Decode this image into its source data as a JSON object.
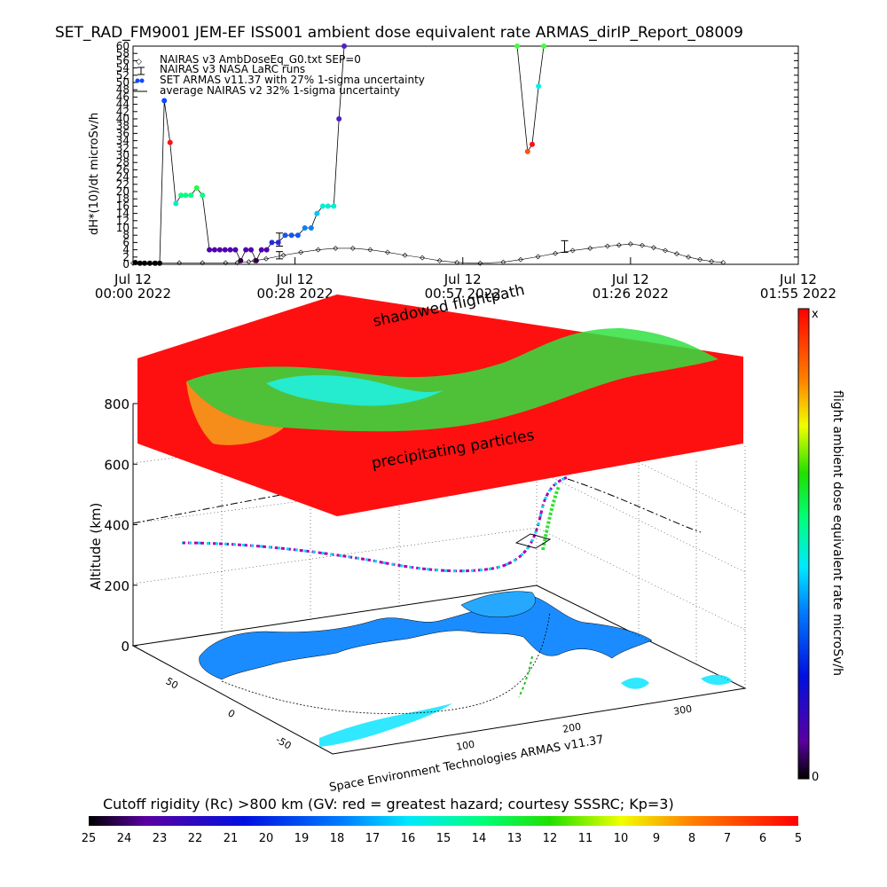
{
  "chart_data": [
    {
      "type": "line",
      "title": "SET_RAD_FM9001   JEM-EF ISS001 ambient dose equivalent rate ARMAS_dirIP_Report_08009",
      "ylabel": "dH*(10)/dt microSv/h",
      "ylim": [
        0,
        60
      ],
      "xlim_minutes": [
        0,
        115
      ],
      "yticks": [
        0,
        2,
        4,
        6,
        8,
        10,
        12,
        14,
        16,
        18,
        20,
        22,
        24,
        26,
        28,
        30,
        32,
        34,
        36,
        38,
        40,
        42,
        44,
        46,
        48,
        50,
        52,
        54,
        56,
        58,
        60
      ],
      "xticks": [
        {
          "minute": 0,
          "line1": "Jul 12",
          "line2": "00:00 2022"
        },
        {
          "minute": 28,
          "line1": "Jul 12",
          "line2": "00:28 2022"
        },
        {
          "minute": 57,
          "line1": "Jul 12",
          "line2": "00:57 2022"
        },
        {
          "minute": 86,
          "line1": "Jul 12",
          "line2": "01:26 2022"
        },
        {
          "minute": 115,
          "line1": "Jul 12",
          "line2": "01:55 2022"
        }
      ],
      "legend": [
        {
          "label": "NAIRAS v3 AmbDoseEq_G0.txt SEP=0",
          "marker": "x"
        },
        {
          "label": "NAIRAS v3 NASA LaRC runs",
          "marker": "errorbar"
        },
        {
          "label": "SET ARMAS v11.37 with 27% 1-sigma uncertainty",
          "marker": "dot"
        },
        {
          "label": "average NAIRAS v2 32% 1-sigma uncertainty",
          "marker": "line"
        }
      ],
      "series": [
        {
          "name": "SET ARMAS v11.37 with 27% 1-sigma uncertainty",
          "points": [
            {
              "x": 0.4,
              "y": 0.5,
              "c": "#000000"
            },
            {
              "x": 1.2,
              "y": 0.3,
              "c": "#000000"
            },
            {
              "x": 2.0,
              "y": 0.3,
              "c": "#000000"
            },
            {
              "x": 2.9,
              "y": 0.3,
              "c": "#000000"
            },
            {
              "x": 3.8,
              "y": 0.3,
              "c": "#000000"
            },
            {
              "x": 4.6,
              "y": 0.3,
              "c": "#000000"
            },
            {
              "x": 5.4,
              "y": 45.0,
              "c": "#1048ff"
            },
            {
              "x": 6.4,
              "y": 33.5,
              "c": "#ff1010"
            },
            {
              "x": 7.4,
              "y": 16.7,
              "c": "#00f0c0"
            },
            {
              "x": 8.3,
              "y": 19.0,
              "c": "#00ff80"
            },
            {
              "x": 9.1,
              "y": 19.0,
              "c": "#00ff80"
            },
            {
              "x": 10.0,
              "y": 19.0,
              "c": "#00ff80"
            },
            {
              "x": 11.0,
              "y": 21.0,
              "c": "#20ff40"
            },
            {
              "x": 12.0,
              "y": 19.0,
              "c": "#00ff80"
            },
            {
              "x": 13.2,
              "y": 4.0,
              "c": "#5000b0"
            },
            {
              "x": 14.1,
              "y": 4.0,
              "c": "#5000b0"
            },
            {
              "x": 15.0,
              "y": 4.0,
              "c": "#5000b0"
            },
            {
              "x": 15.9,
              "y": 4.0,
              "c": "#5000b0"
            },
            {
              "x": 16.8,
              "y": 4.0,
              "c": "#5000b0"
            },
            {
              "x": 17.7,
              "y": 4.0,
              "c": "#5000b0"
            },
            {
              "x": 18.6,
              "y": 1.0,
              "c": "#300040"
            },
            {
              "x": 19.5,
              "y": 4.0,
              "c": "#5000b0"
            },
            {
              "x": 20.4,
              "y": 4.0,
              "c": "#5000b0"
            },
            {
              "x": 21.3,
              "y": 1.0,
              "c": "#300040"
            },
            {
              "x": 22.2,
              "y": 4.0,
              "c": "#5000b0"
            },
            {
              "x": 23.1,
              "y": 4.0,
              "c": "#5000b0"
            },
            {
              "x": 24.0,
              "y": 6.0,
              "c": "#2828e0"
            },
            {
              "x": 25.1,
              "y": 6.0,
              "c": "#2828e0"
            },
            {
              "x": 26.3,
              "y": 8.0,
              "c": "#1058f0"
            },
            {
              "x": 27.4,
              "y": 8.0,
              "c": "#1058f0"
            },
            {
              "x": 28.5,
              "y": 8.0,
              "c": "#1058f0"
            },
            {
              "x": 29.7,
              "y": 10.0,
              "c": "#1080f0"
            },
            {
              "x": 30.8,
              "y": 10.0,
              "c": "#1080f0"
            },
            {
              "x": 31.8,
              "y": 14.0,
              "c": "#00c8f0"
            },
            {
              "x": 32.8,
              "y": 16.0,
              "c": "#00f0d0"
            },
            {
              "x": 33.7,
              "y": 16.0,
              "c": "#00f0d0"
            },
            {
              "x": 34.7,
              "y": 16.0,
              "c": "#00f0d0"
            },
            {
              "x": 35.6,
              "y": 40.0,
              "c": "#5020c0"
            },
            {
              "x": 36.5,
              "y": 60.0,
              "c": "#5020c0"
            },
            {
              "x": 66.4,
              "y": 60.0,
              "c": "#40ff40"
            },
            {
              "x": 68.2,
              "y": 31.0,
              "c": "#ff5010"
            },
            {
              "x": 69.0,
              "y": 33.0,
              "c": "#ff1010"
            },
            {
              "x": 70.1,
              "y": 49.0,
              "c": "#00f0f0"
            },
            {
              "x": 71.0,
              "y": 60.0,
              "c": "#40ff40"
            }
          ]
        },
        {
          "name": "NAIRAS v3 AmbDoseEq_G0.txt SEP=0",
          "points": [
            {
              "x": 0,
              "y": 0.3
            },
            {
              "x": 4,
              "y": 0.3
            },
            {
              "x": 8,
              "y": 0.4
            },
            {
              "x": 12,
              "y": 0.4
            },
            {
              "x": 16,
              "y": 0.4
            },
            {
              "x": 18,
              "y": 0.4
            },
            {
              "x": 20,
              "y": 0.7
            },
            {
              "x": 21,
              "y": 1.0
            },
            {
              "x": 23,
              "y": 1.5
            },
            {
              "x": 26,
              "y": 2.5
            },
            {
              "x": 29,
              "y": 3.3
            },
            {
              "x": 32,
              "y": 4.0
            },
            {
              "x": 35,
              "y": 4.4
            },
            {
              "x": 38,
              "y": 4.4
            },
            {
              "x": 41,
              "y": 4.0
            },
            {
              "x": 44,
              "y": 3.3
            },
            {
              "x": 47,
              "y": 2.5
            },
            {
              "x": 50,
              "y": 1.8
            },
            {
              "x": 53,
              "y": 1.0
            },
            {
              "x": 56,
              "y": 0.5
            },
            {
              "x": 60,
              "y": 0.3
            },
            {
              "x": 64,
              "y": 0.6
            },
            {
              "x": 67,
              "y": 1.3
            },
            {
              "x": 70,
              "y": 2.1
            },
            {
              "x": 73,
              "y": 3.0
            },
            {
              "x": 76,
              "y": 3.8
            },
            {
              "x": 79,
              "y": 4.4
            },
            {
              "x": 82,
              "y": 5.0
            },
            {
              "x": 84,
              "y": 5.3
            },
            {
              "x": 86,
              "y": 5.6
            },
            {
              "x": 88,
              "y": 5.2
            },
            {
              "x": 90,
              "y": 4.6
            },
            {
              "x": 92,
              "y": 3.8
            },
            {
              "x": 94,
              "y": 2.9
            },
            {
              "x": 96,
              "y": 2.0
            },
            {
              "x": 98,
              "y": 1.3
            },
            {
              "x": 100,
              "y": 0.8
            },
            {
              "x": 102,
              "y": 0.5
            }
          ]
        },
        {
          "name": "NAIRAS v3 NASA LaRC runs",
          "points": [
            {
              "x": 25.3,
              "y": 6.8,
              "err": 1.8
            },
            {
              "x": 25.3,
              "y": 2.5,
              "err": 1.0
            },
            {
              "x": 74.6,
              "y": 4.9,
              "err": 1.6
            }
          ]
        }
      ]
    },
    {
      "type": "3d-map",
      "zlabel": "Altitude (km)",
      "zticks": [
        0,
        200,
        400,
        600,
        800
      ],
      "lat_ticks": [
        50,
        0,
        -50
      ],
      "lon_ticks": [
        100,
        200,
        300
      ],
      "annotations": [
        "shadowed flightpath",
        "precipitating particles"
      ],
      "credit": "Space Environment Technologies ARMAS v11.37",
      "colorbar_label": "flight ambient dose equivalent rate microSv/h",
      "colorbar_top": "x",
      "colorbar_bottom": "0",
      "bottom_bar_title": "Cutoff rigidity (Rc) >800 km (GV: red = greatest hazard; courtesy SSSRC; Kp=3)",
      "bottom_bar_labels": [
        "25",
        "24",
        "23",
        "22",
        "21",
        "20",
        "19",
        "18",
        "17",
        "16",
        "15",
        "14",
        "13",
        "12",
        "11",
        "10",
        "9",
        "8",
        "7",
        "6",
        "5"
      ]
    }
  ]
}
